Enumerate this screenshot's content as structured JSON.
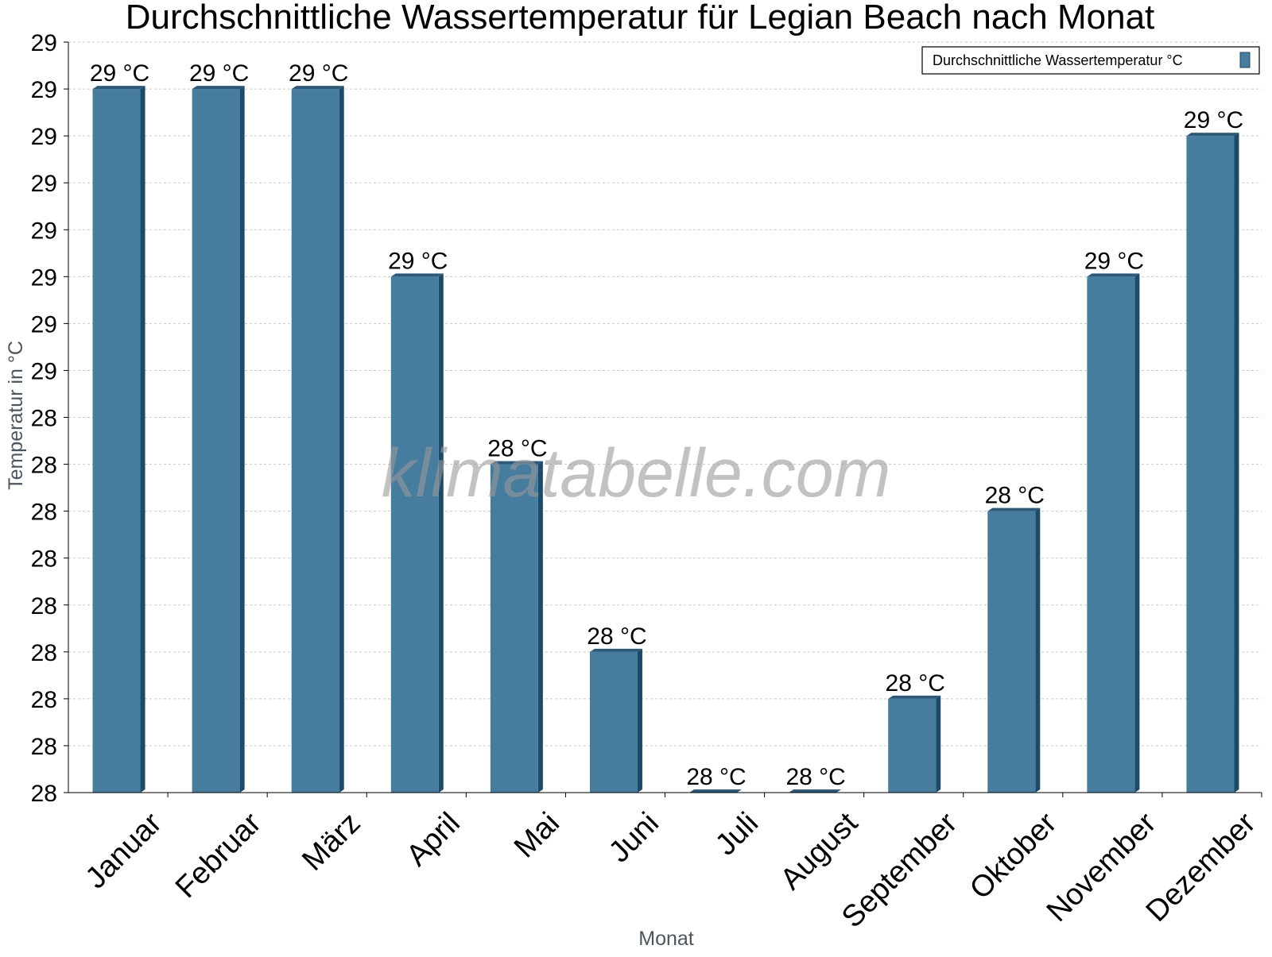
{
  "chart_data": {
    "type": "bar",
    "title": "Durchschnittliche Wassertemperatur für Legian Beach nach Monat",
    "xlabel": "Monat",
    "ylabel": "Temperatur in °C",
    "categories": [
      "Januar",
      "Februar",
      "März",
      "April",
      "Mai",
      "Juni",
      "Juli",
      "August",
      "September",
      "Oktober",
      "November",
      "Dezember"
    ],
    "series": [
      {
        "name": "Durchschnittliche Wassertemperatur °C",
        "values": [
          28.85,
          28.85,
          28.85,
          28.65,
          28.45,
          28.25,
          28.1,
          28.1,
          28.2,
          28.4,
          28.65,
          28.8
        ],
        "labels": [
          "29 °C",
          "29 °C",
          "29 °C",
          "29 °C",
          "28 °C",
          "28 °C",
          "28 °C",
          "28 °C",
          "28 °C",
          "28 °C",
          "29 °C",
          "29 °C"
        ],
        "color": "#467c9e"
      }
    ],
    "ylim": [
      28.1,
      28.9
    ],
    "yticks": [
      28.1,
      28.15,
      28.2,
      28.25,
      28.3,
      28.35,
      28.4,
      28.45,
      28.5,
      28.55,
      28.6,
      28.65,
      28.7,
      28.75,
      28.8,
      28.85,
      28.9
    ],
    "ytick_labels": [
      "28",
      "28",
      "28",
      "28",
      "28",
      "28",
      "28",
      "28",
      "28",
      "29",
      "29",
      "29",
      "29",
      "29",
      "29",
      "29",
      "29"
    ],
    "grid": true,
    "legend_position": "top-right"
  },
  "watermark": "klimatabelle.com",
  "colors": {
    "bar_front": "#467c9e",
    "bar_side": "#1c4a6a",
    "bar_top": "#2c5a7a",
    "grid": "#c8c8c8",
    "axis": "#000000"
  }
}
